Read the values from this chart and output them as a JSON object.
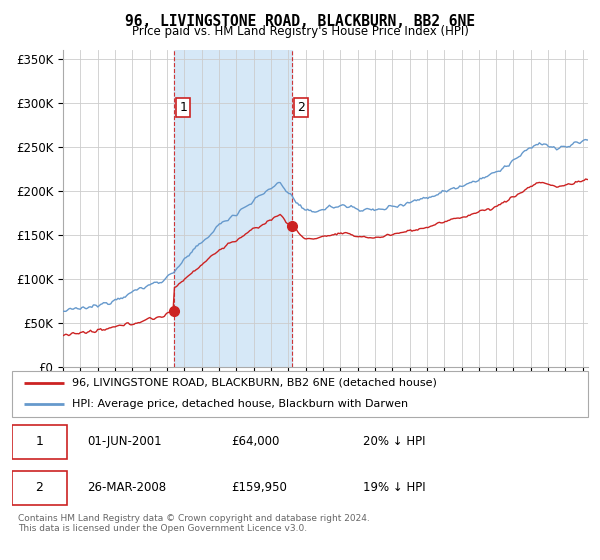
{
  "title": "96, LIVINGSTONE ROAD, BLACKBURN, BB2 6NE",
  "subtitle": "Price paid vs. HM Land Registry's House Price Index (HPI)",
  "hpi_color": "#6699cc",
  "price_color": "#cc2222",
  "dashed_color": "#cc2222",
  "shade_color": "#d6e8f7",
  "bg_color": "#ffffff",
  "grid_color": "#cccccc",
  "ylim": [
    0,
    360000
  ],
  "yticks": [
    0,
    50000,
    100000,
    150000,
    200000,
    250000,
    300000,
    350000
  ],
  "xlim_start": 1995.0,
  "xlim_end": 2025.3,
  "transaction1_x": 2001.42,
  "transaction1_y": 64000,
  "transaction2_x": 2008.23,
  "transaction2_y": 159950,
  "legend_line1": "96, LIVINGSTONE ROAD, BLACKBURN, BB2 6NE (detached house)",
  "legend_line2": "HPI: Average price, detached house, Blackburn with Darwen",
  "table_row1": [
    "1",
    "01-JUN-2001",
    "£64,000",
    "20% ↓ HPI"
  ],
  "table_row2": [
    "2",
    "26-MAR-2008",
    "£159,950",
    "19% ↓ HPI"
  ],
  "footer": "Contains HM Land Registry data © Crown copyright and database right 2024.\nThis data is licensed under the Open Government Licence v3.0."
}
